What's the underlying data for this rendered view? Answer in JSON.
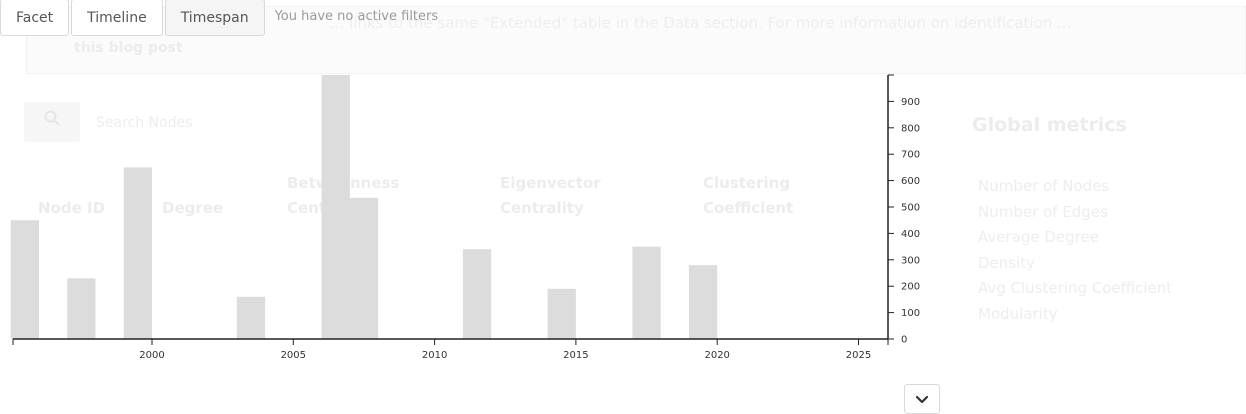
{
  "filters": {
    "buttons": [
      {
        "label": "Facet",
        "active": false
      },
      {
        "label": "Timeline",
        "active": false
      },
      {
        "label": "Timespan",
        "active": true
      }
    ],
    "status": "You have no active filters"
  },
  "background": {
    "note_text": "... links to the same \"Extended\" table in the Data section. For more information on identification ...",
    "note_link": "this blog post",
    "search_placeholder": "Search Nodes",
    "columns": [
      "Node ID",
      "Degree",
      "Betweenness Centrality",
      "Eigenvector Centrality",
      "Clustering Coefficient"
    ],
    "metrics_title": "Global metrics",
    "metrics": [
      "Number of Nodes",
      "Number of Edges",
      "Average Degree",
      "Density",
      "Avg Clustering Coefficient",
      "Modularity"
    ]
  },
  "chart_data": {
    "type": "bar",
    "x": [
      1995.5,
      1997.5,
      1999.5,
      2003.5,
      2006.5,
      2007.5,
      2011.5,
      2014.5,
      2017.5,
      2019.5
    ],
    "values": [
      450,
      230,
      650,
      160,
      1000,
      535,
      340,
      190,
      350,
      280
    ],
    "bin_width": 1,
    "x_ticks": [
      2000,
      2005,
      2010,
      2015,
      2020,
      2025
    ],
    "y_ticks": [
      0,
      100,
      200,
      300,
      400,
      500,
      600,
      700,
      800,
      900
    ],
    "xlim": [
      1995,
      2026
    ],
    "ylim": [
      0,
      1000
    ],
    "y_axis_side": "right",
    "bar_color": "#dcdcdc",
    "grid": false
  },
  "colors": {
    "bar": "#dcdcdc",
    "axis": "#222222",
    "button_border": "#d9d9d9",
    "status_text": "#9a9a9a"
  },
  "icons": {
    "expand": "chevron-down-icon",
    "search": "search-icon"
  }
}
